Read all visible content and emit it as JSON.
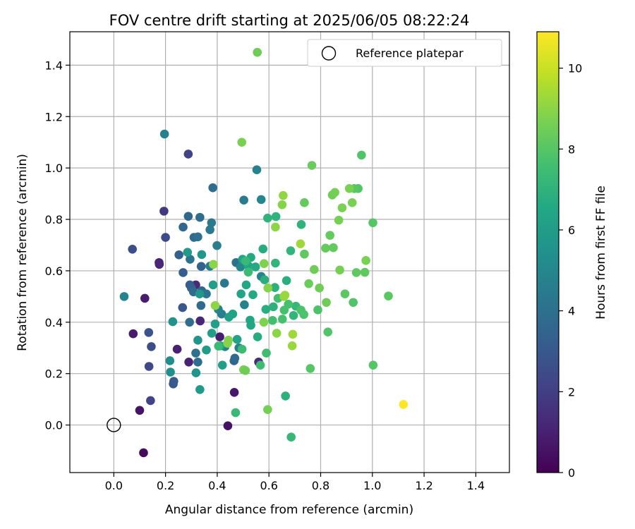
{
  "chart_data": {
    "type": "scatter",
    "title": "FOV centre drift starting at 2025/06/05 08:22:24",
    "xlabel": "Angular distance from reference (arcmin)",
    "ylabel": "Rotation from reference (arcmin)",
    "xlim": [
      -0.17,
      1.53
    ],
    "ylim": [
      -0.185,
      1.53
    ],
    "xticks": [
      "0.0",
      "0.2",
      "0.4",
      "0.6",
      "0.8",
      "1.0",
      "1.2",
      "1.4"
    ],
    "yticks": [
      "0.0",
      "0.2",
      "0.4",
      "0.6",
      "0.8",
      "1.0",
      "1.2",
      "1.4"
    ],
    "grid": true,
    "colorbar": {
      "label": "Hours from first FF file",
      "range": [
        0,
        10.9
      ],
      "ticks": [
        "0",
        "2",
        "4",
        "6",
        "8",
        "10"
      ],
      "colormap": "viridis"
    },
    "legend": {
      "placement": "top-right",
      "entries": [
        {
          "label": "Reference platepar",
          "marker": "hollow-circle"
        }
      ]
    },
    "reference_point": {
      "x": 0.0,
      "y": 0.0
    },
    "points": [
      {
        "x": 0.115,
        "y": -0.108,
        "c": 0.3
      },
      {
        "x": 0.1,
        "y": 0.057,
        "c": 0.6
      },
      {
        "x": 0.075,
        "y": 0.355,
        "c": 0.8
      },
      {
        "x": 0.12,
        "y": 0.493,
        "c": 0.9
      },
      {
        "x": 0.175,
        "y": 0.632,
        "c": 1.0
      },
      {
        "x": 0.176,
        "y": 0.625,
        "c": 1.2
      },
      {
        "x": 0.441,
        "y": -0.003,
        "c": 0.5
      },
      {
        "x": 0.466,
        "y": 0.127,
        "c": 0.7
      },
      {
        "x": 0.41,
        "y": 0.343,
        "c": 0.9
      },
      {
        "x": 0.245,
        "y": 0.295,
        "c": 1.0
      },
      {
        "x": 0.29,
        "y": 0.245,
        "c": 1.1
      },
      {
        "x": 0.334,
        "y": 0.405,
        "c": 1.2
      },
      {
        "x": 0.317,
        "y": 0.545,
        "c": 1.3
      },
      {
        "x": 0.56,
        "y": 0.245,
        "c": 1.3
      },
      {
        "x": 0.142,
        "y": 0.095,
        "c": 2.2
      },
      {
        "x": 0.136,
        "y": 0.228,
        "c": 2.4
      },
      {
        "x": 0.145,
        "y": 0.305,
        "c": 2.6
      },
      {
        "x": 0.135,
        "y": 0.36,
        "c": 2.8
      },
      {
        "x": 0.194,
        "y": 0.832,
        "c": 1.8
      },
      {
        "x": 0.288,
        "y": 1.054,
        "c": 2.2
      },
      {
        "x": 0.2,
        "y": 0.73,
        "c": 2.5
      },
      {
        "x": 0.072,
        "y": 0.684,
        "c": 2.6
      },
      {
        "x": 0.23,
        "y": 0.16,
        "c": 3.0
      },
      {
        "x": 0.232,
        "y": 0.17,
        "c": 3.1
      },
      {
        "x": 0.266,
        "y": 0.457,
        "c": 3.0
      },
      {
        "x": 0.268,
        "y": 0.593,
        "c": 3.2
      },
      {
        "x": 0.252,
        "y": 0.662,
        "c": 3.3
      },
      {
        "x": 0.294,
        "y": 0.545,
        "c": 3.2
      },
      {
        "x": 0.3,
        "y": 0.533,
        "c": 3.4
      },
      {
        "x": 0.288,
        "y": 0.812,
        "c": 3.6
      },
      {
        "x": 0.268,
        "y": 0.77,
        "c": 3.6
      },
      {
        "x": 0.31,
        "y": 0.73,
        "c": 3.8
      },
      {
        "x": 0.308,
        "y": 0.518,
        "c": 3.8
      },
      {
        "x": 0.325,
        "y": 0.245,
        "c": 3.9
      },
      {
        "x": 0.317,
        "y": 0.28,
        "c": 4.0
      },
      {
        "x": 0.293,
        "y": 0.4,
        "c": 3.9
      },
      {
        "x": 0.338,
        "y": 0.617,
        "c": 3.4
      },
      {
        "x": 0.34,
        "y": 0.522,
        "c": 3.6
      },
      {
        "x": 0.337,
        "y": 0.465,
        "c": 3.8
      },
      {
        "x": 0.333,
        "y": 0.808,
        "c": 3.9
      },
      {
        "x": 0.295,
        "y": 0.645,
        "c": 4.2
      },
      {
        "x": 0.325,
        "y": 0.732,
        "c": 4.0
      },
      {
        "x": 0.358,
        "y": 0.51,
        "c": 4.2
      },
      {
        "x": 0.372,
        "y": 0.76,
        "c": 4.4
      },
      {
        "x": 0.383,
        "y": 0.923,
        "c": 3.9
      },
      {
        "x": 0.378,
        "y": 0.787,
        "c": 4.4
      },
      {
        "x": 0.372,
        "y": 0.618,
        "c": 4.5
      },
      {
        "x": 0.399,
        "y": 0.698,
        "c": 4.6
      },
      {
        "x": 0.465,
        "y": 0.25,
        "c": 3.6
      },
      {
        "x": 0.468,
        "y": 0.26,
        "c": 3.8
      },
      {
        "x": 0.473,
        "y": 0.632,
        "c": 4.0
      },
      {
        "x": 0.428,
        "y": 0.552,
        "c": 4.3
      },
      {
        "x": 0.417,
        "y": 0.432,
        "c": 4.6
      },
      {
        "x": 0.404,
        "y": 0.45,
        "c": 4.8
      },
      {
        "x": 0.43,
        "y": 0.305,
        "c": 4.7
      },
      {
        "x": 0.484,
        "y": 0.3,
        "c": 4.8
      },
      {
        "x": 0.503,
        "y": 0.875,
        "c": 4.5
      },
      {
        "x": 0.5,
        "y": 0.625,
        "c": 4.9
      },
      {
        "x": 0.505,
        "y": 0.468,
        "c": 4.8
      },
      {
        "x": 0.49,
        "y": 0.615,
        "c": 5.0
      },
      {
        "x": 0.553,
        "y": 0.993,
        "c": 4.8
      },
      {
        "x": 0.57,
        "y": 0.877,
        "c": 5.0
      },
      {
        "x": 0.57,
        "y": 0.578,
        "c": 4.8
      },
      {
        "x": 0.04,
        "y": 0.5,
        "c": 4.8
      },
      {
        "x": 0.196,
        "y": 1.132,
        "c": 4.7
      },
      {
        "x": 0.217,
        "y": 0.25,
        "c": 5.3
      },
      {
        "x": 0.219,
        "y": 0.206,
        "c": 5.4
      },
      {
        "x": 0.228,
        "y": 0.402,
        "c": 5.5
      },
      {
        "x": 0.318,
        "y": 0.203,
        "c": 5.6
      },
      {
        "x": 0.325,
        "y": 0.33,
        "c": 5.6
      },
      {
        "x": 0.332,
        "y": 0.51,
        "c": 5.7
      },
      {
        "x": 0.34,
        "y": 0.663,
        "c": 5.7
      },
      {
        "x": 0.285,
        "y": 0.672,
        "c": 5.9
      },
      {
        "x": 0.333,
        "y": 0.138,
        "c": 5.9
      },
      {
        "x": 0.358,
        "y": 0.292,
        "c": 5.9
      },
      {
        "x": 0.379,
        "y": 0.357,
        "c": 6.0
      },
      {
        "x": 0.384,
        "y": 0.545,
        "c": 6.0
      },
      {
        "x": 0.392,
        "y": 0.393,
        "c": 6.1
      },
      {
        "x": 0.413,
        "y": 0.308,
        "c": 6.2
      },
      {
        "x": 0.42,
        "y": 0.233,
        "c": 6.1
      },
      {
        "x": 0.445,
        "y": 0.42,
        "c": 6.2
      },
      {
        "x": 0.46,
        "y": 0.432,
        "c": 6.3
      },
      {
        "x": 0.477,
        "y": 0.333,
        "c": 6.3
      },
      {
        "x": 0.492,
        "y": 0.51,
        "c": 6.4
      },
      {
        "x": 0.498,
        "y": 0.645,
        "c": 6.4
      },
      {
        "x": 0.512,
        "y": 0.545,
        "c": 6.5
      },
      {
        "x": 0.52,
        "y": 0.62,
        "c": 6.5
      },
      {
        "x": 0.527,
        "y": 0.408,
        "c": 6.5
      },
      {
        "x": 0.53,
        "y": 0.388,
        "c": 6.5
      },
      {
        "x": 0.53,
        "y": 0.652,
        "c": 6.6
      },
      {
        "x": 0.538,
        "y": 0.507,
        "c": 6.6
      },
      {
        "x": 0.548,
        "y": 0.615,
        "c": 6.6
      },
      {
        "x": 0.556,
        "y": 0.343,
        "c": 6.7
      },
      {
        "x": 0.577,
        "y": 0.685,
        "c": 6.7
      },
      {
        "x": 0.583,
        "y": 0.565,
        "c": 6.8
      },
      {
        "x": 0.588,
        "y": 0.45,
        "c": 6.8
      },
      {
        "x": 0.595,
        "y": 0.805,
        "c": 7.0
      },
      {
        "x": 0.617,
        "y": 0.46,
        "c": 6.9
      },
      {
        "x": 0.623,
        "y": 0.535,
        "c": 6.9
      },
      {
        "x": 0.627,
        "y": 0.811,
        "c": 7.0
      },
      {
        "x": 0.625,
        "y": 0.63,
        "c": 7.1
      },
      {
        "x": 0.664,
        "y": 0.113,
        "c": 6.9
      },
      {
        "x": 0.668,
        "y": 0.562,
        "c": 6.8
      },
      {
        "x": 0.684,
        "y": 0.678,
        "c": 7.1
      },
      {
        "x": 0.695,
        "y": 0.426,
        "c": 7.1
      },
      {
        "x": 0.704,
        "y": 0.462,
        "c": 7.2
      },
      {
        "x": 0.725,
        "y": 0.78,
        "c": 7.0
      },
      {
        "x": 0.686,
        "y": -0.047,
        "c": 7.2
      },
      {
        "x": 0.471,
        "y": 0.048,
        "c": 7.3
      },
      {
        "x": 0.405,
        "y": 0.307,
        "c": 7.3
      },
      {
        "x": 0.496,
        "y": 0.295,
        "c": 7.4
      },
      {
        "x": 0.51,
        "y": 0.638,
        "c": 7.3
      },
      {
        "x": 0.52,
        "y": 0.595,
        "c": 7.4
      },
      {
        "x": 0.567,
        "y": 0.233,
        "c": 7.5
      },
      {
        "x": 0.59,
        "y": 0.28,
        "c": 7.5
      },
      {
        "x": 0.614,
        "y": 0.407,
        "c": 7.6
      },
      {
        "x": 0.635,
        "y": 0.493,
        "c": 7.6
      },
      {
        "x": 0.652,
        "y": 0.412,
        "c": 7.7
      },
      {
        "x": 0.659,
        "y": 0.447,
        "c": 7.7
      },
      {
        "x": 0.675,
        "y": 0.47,
        "c": 7.7
      },
      {
        "x": 0.724,
        "y": 0.447,
        "c": 7.8
      },
      {
        "x": 0.735,
        "y": 0.43,
        "c": 7.8
      },
      {
        "x": 0.789,
        "y": 0.448,
        "c": 7.8
      },
      {
        "x": 0.828,
        "y": 0.362,
        "c": 7.9
      },
      {
        "x": 0.926,
        "y": 0.477,
        "c": 7.9
      },
      {
        "x": 0.945,
        "y": 0.92,
        "c": 7.9
      },
      {
        "x": 0.958,
        "y": 1.05,
        "c": 7.9
      },
      {
        "x": 1.002,
        "y": 0.787,
        "c": 8.0
      },
      {
        "x": 1.003,
        "y": 0.233,
        "c": 8.0
      },
      {
        "x": 1.062,
        "y": 0.502,
        "c": 8.1
      },
      {
        "x": 0.971,
        "y": 0.594,
        "c": 8.2
      },
      {
        "x": 0.938,
        "y": 0.593,
        "c": 8.2
      },
      {
        "x": 0.93,
        "y": 0.92,
        "c": 8.1
      },
      {
        "x": 0.894,
        "y": 0.51,
        "c": 8.1
      },
      {
        "x": 0.849,
        "y": 0.69,
        "c": 8.3
      },
      {
        "x": 0.836,
        "y": 0.738,
        "c": 8.3
      },
      {
        "x": 0.819,
        "y": 0.688,
        "c": 8.3
      },
      {
        "x": 0.76,
        "y": 0.22,
        "c": 8.0
      },
      {
        "x": 0.737,
        "y": 0.665,
        "c": 8.2
      },
      {
        "x": 0.737,
        "y": 0.865,
        "c": 8.3
      },
      {
        "x": 0.754,
        "y": 0.55,
        "c": 8.4
      },
      {
        "x": 0.766,
        "y": 1.01,
        "c": 8.4
      },
      {
        "x": 0.775,
        "y": 0.605,
        "c": 8.5
      },
      {
        "x": 0.795,
        "y": 0.533,
        "c": 8.5
      },
      {
        "x": 0.822,
        "y": 0.477,
        "c": 8.5
      },
      {
        "x": 0.845,
        "y": 0.895,
        "c": 8.5
      },
      {
        "x": 0.855,
        "y": 0.905,
        "c": 8.6
      },
      {
        "x": 0.87,
        "y": 0.797,
        "c": 8.6
      },
      {
        "x": 0.874,
        "y": 0.603,
        "c": 8.6
      },
      {
        "x": 0.883,
        "y": 0.845,
        "c": 8.7
      },
      {
        "x": 0.911,
        "y": 0.92,
        "c": 8.7
      },
      {
        "x": 0.922,
        "y": 0.865,
        "c": 8.7
      },
      {
        "x": 0.975,
        "y": 0.64,
        "c": 8.7
      },
      {
        "x": 0.495,
        "y": 1.1,
        "c": 8.7
      },
      {
        "x": 0.555,
        "y": 1.45,
        "c": 8.5
      },
      {
        "x": 0.595,
        "y": 0.06,
        "c": 8.6
      },
      {
        "x": 0.502,
        "y": 0.215,
        "c": 8.7
      },
      {
        "x": 0.509,
        "y": 0.212,
        "c": 8.5
      },
      {
        "x": 0.443,
        "y": 0.33,
        "c": 8.8
      },
      {
        "x": 0.44,
        "y": 0.318,
        "c": 8.9
      },
      {
        "x": 0.385,
        "y": 0.625,
        "c": 9.0
      },
      {
        "x": 0.392,
        "y": 0.465,
        "c": 9.0
      },
      {
        "x": 0.58,
        "y": 0.4,
        "c": 8.8
      },
      {
        "x": 0.581,
        "y": 0.628,
        "c": 8.8
      },
      {
        "x": 0.596,
        "y": 0.533,
        "c": 8.9
      },
      {
        "x": 0.625,
        "y": 0.77,
        "c": 9.0
      },
      {
        "x": 0.63,
        "y": 0.357,
        "c": 9.0
      },
      {
        "x": 0.651,
        "y": 0.857,
        "c": 8.9
      },
      {
        "x": 0.655,
        "y": 0.893,
        "c": 9.1
      },
      {
        "x": 0.658,
        "y": 0.5,
        "c": 9.1
      },
      {
        "x": 0.662,
        "y": 0.505,
        "c": 9.2
      },
      {
        "x": 0.69,
        "y": 0.308,
        "c": 9.2
      },
      {
        "x": 0.692,
        "y": 0.353,
        "c": 9.3
      },
      {
        "x": 0.722,
        "y": 0.705,
        "c": 9.3
      },
      {
        "x": 1.12,
        "y": 0.08,
        "c": 10.9
      }
    ]
  }
}
